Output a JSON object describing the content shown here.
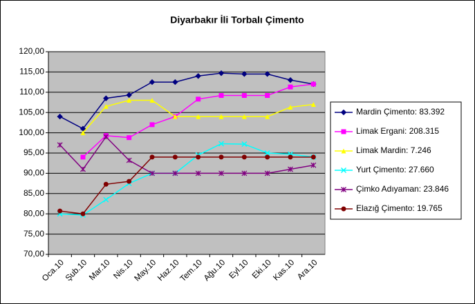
{
  "chart_data": {
    "type": "line",
    "title": "Diyarbakır İli Torbalı Çimento",
    "categories": [
      "Oca.10",
      "Şub.10",
      "Mar.10",
      "Nis.10",
      "May.10",
      "Haz.10",
      "Tem.10",
      "Ağu.10",
      "Eyl.10",
      "Eki.10",
      "Kas.10",
      "Ara.10"
    ],
    "ylim": [
      70,
      120
    ],
    "yticks": [
      {
        "value": 70,
        "label": "70,00"
      },
      {
        "value": 75,
        "label": "75,00"
      },
      {
        "value": 80,
        "label": "80,00"
      },
      {
        "value": 85,
        "label": "85,00"
      },
      {
        "value": 90,
        "label": "90,00"
      },
      {
        "value": 95,
        "label": "95,00"
      },
      {
        "value": 100,
        "label": "100,00"
      },
      {
        "value": 105,
        "label": "105,00"
      },
      {
        "value": 110,
        "label": "110,00"
      },
      {
        "value": 115,
        "label": "115,00"
      },
      {
        "value": 120,
        "label": "120,00"
      }
    ],
    "grid": true,
    "legend": "right",
    "series": [
      {
        "name": "Mardin Çimento: 83.392",
        "color": "#000080",
        "marker": "diamond",
        "values": [
          104,
          101,
          108.5,
          109.3,
          112.5,
          112.5,
          114,
          114.7,
          114.5,
          114.5,
          113,
          112
        ]
      },
      {
        "name": "Limak Ergani: 208.315",
        "color": "#ff00ff",
        "marker": "square",
        "values": [
          null,
          94,
          99.3,
          98.8,
          102,
          104,
          108.3,
          109.2,
          109.2,
          109.2,
          111.3,
          112
        ]
      },
      {
        "name": "Limak Mardin: 7.246",
        "color": "#ffff00",
        "marker": "triangle",
        "values": [
          null,
          100,
          106.5,
          108,
          108,
          104,
          104,
          104,
          104,
          104,
          106.3,
          107
        ]
      },
      {
        "name": "Yurt Çimento: 27.660",
        "color": "#00ffff",
        "marker": "x",
        "values": [
          80,
          79.7,
          83.5,
          87.5,
          90,
          90,
          94.5,
          97.3,
          97.2,
          95,
          94.7,
          94
        ]
      },
      {
        "name": "Çimko Adıyaman: 23.846",
        "color": "#800080",
        "marker": "star",
        "values": [
          97,
          91,
          99,
          93.2,
          90,
          90,
          90,
          90,
          90,
          90,
          91,
          92
        ]
      },
      {
        "name": "Elazığ Çimento: 19.765",
        "color": "#800000",
        "marker": "circle",
        "values": [
          80.7,
          80,
          87.3,
          88,
          94,
          94,
          94,
          94,
          94,
          94,
          94,
          94
        ]
      }
    ]
  }
}
